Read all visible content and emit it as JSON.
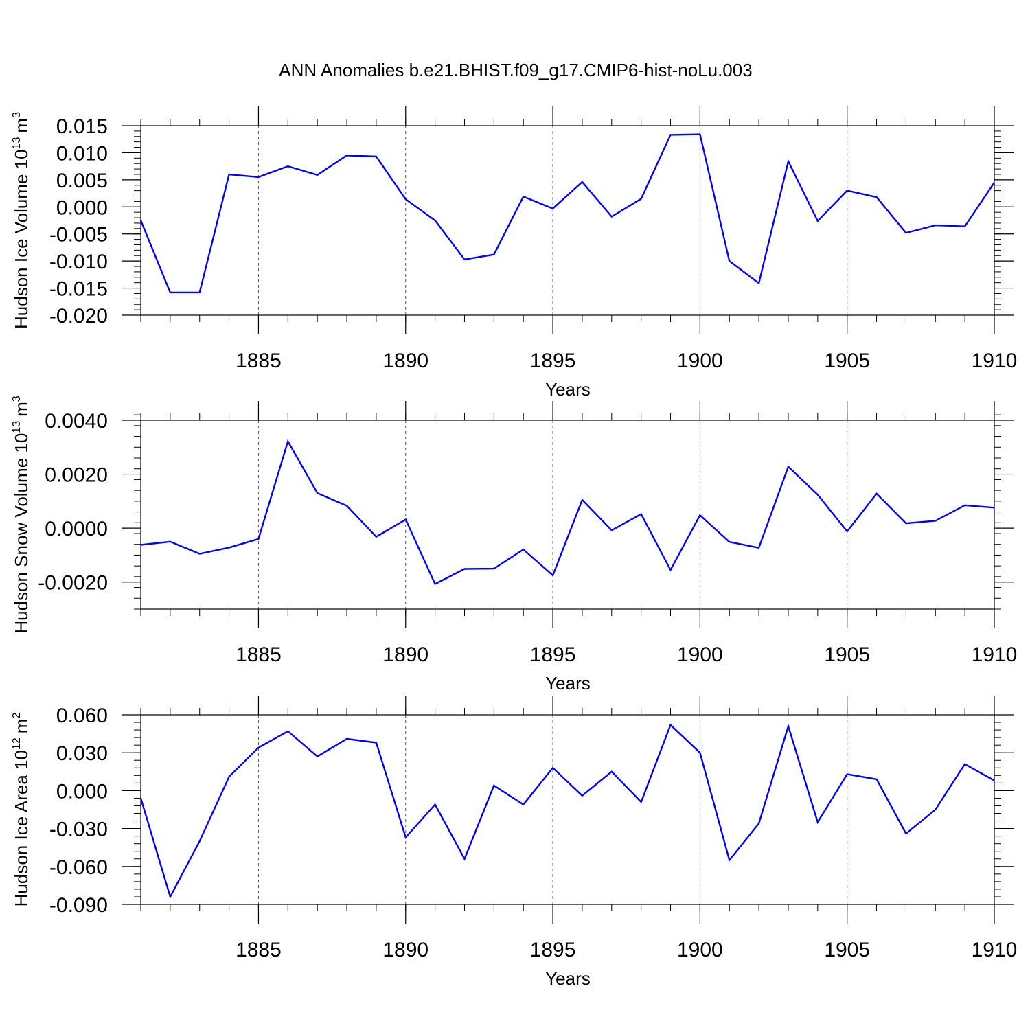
{
  "figure_title": "ANN Anomalies b.e21.BHIST.f09_g17.CMIP6-hist-noLu.003",
  "colors": {
    "series": "#0000ff",
    "axis": "#000000",
    "grid": "#555555"
  },
  "chart_data": [
    {
      "type": "line",
      "title": "ANN Anomalies b.e21.BHIST.f09_g17.CMIP6-hist-noLu.003",
      "ylabel_main": "Hudson Ice Volume 10",
      "ylabel_exp": "13",
      "ylabel_unit": "m",
      "ylabel_unit_exp": "3",
      "xlabel": "Years",
      "xlim": [
        1881,
        1910
      ],
      "ylim": [
        -0.02,
        0.015
      ],
      "yticks": [
        -0.02,
        -0.015,
        -0.01,
        -0.005,
        0.0,
        0.005,
        0.01,
        0.015
      ],
      "ytick_labels": [
        "-0.020",
        "-0.015",
        "-0.010",
        "-0.005",
        "0.000",
        "0.005",
        "0.010",
        "0.015"
      ],
      "yminor_step": 0.001,
      "xticks": [
        1885,
        1890,
        1895,
        1900,
        1905,
        1910
      ],
      "xtick_labels": [
        "1885",
        "1890",
        "1895",
        "1900",
        "1905",
        "1910"
      ],
      "x": [
        1881,
        1882,
        1883,
        1884,
        1885,
        1886,
        1887,
        1888,
        1889,
        1890,
        1891,
        1892,
        1893,
        1894,
        1895,
        1896,
        1897,
        1898,
        1899,
        1900,
        1901,
        1902,
        1903,
        1904,
        1905,
        1906,
        1907,
        1908,
        1909,
        1910
      ],
      "values": [
        -0.0025,
        -0.0158,
        -0.0158,
        0.006,
        0.0055,
        0.0075,
        0.0059,
        0.0095,
        0.0093,
        0.0014,
        -0.0025,
        -0.0097,
        -0.0088,
        0.0019,
        -0.0003,
        0.0046,
        -0.0018,
        0.0015,
        0.0133,
        0.0134,
        -0.01,
        -0.0141,
        0.0084,
        -0.0026,
        0.003,
        0.0018,
        -0.0048,
        -0.0034,
        -0.0036,
        0.0045
      ]
    },
    {
      "type": "line",
      "ylabel_main": "Hudson Snow Volume 10",
      "ylabel_exp": "13",
      "ylabel_unit": "m",
      "ylabel_unit_exp": "3",
      "xlabel": "Years",
      "xlim": [
        1881,
        1910
      ],
      "ylim": [
        -0.003,
        0.004
      ],
      "yticks": [
        -0.002,
        0.0,
        0.002,
        0.004
      ],
      "ytick_labels": [
        "-0.0020",
        "0.0000",
        "0.0020",
        "0.0040"
      ],
      "yminor_step": 0.0004,
      "xticks": [
        1885,
        1890,
        1895,
        1900,
        1905,
        1910
      ],
      "xtick_labels": [
        "1885",
        "1890",
        "1895",
        "1900",
        "1905",
        "1910"
      ],
      "x": [
        1881,
        1882,
        1883,
        1884,
        1885,
        1886,
        1887,
        1888,
        1889,
        1890,
        1891,
        1892,
        1893,
        1894,
        1895,
        1896,
        1897,
        1898,
        1899,
        1900,
        1901,
        1902,
        1903,
        1904,
        1905,
        1906,
        1907,
        1908,
        1909,
        1910
      ],
      "values": [
        -0.00062,
        -0.0005,
        -0.00095,
        -0.00072,
        -0.0004,
        0.00322,
        0.0013,
        0.00083,
        -0.00032,
        0.00032,
        -0.00207,
        -0.00151,
        -0.0015,
        -0.00079,
        -0.00175,
        0.00105,
        -8e-05,
        0.00052,
        -0.00155,
        0.00048,
        -0.00051,
        -0.00073,
        0.00228,
        0.00124,
        -0.00012,
        0.00128,
        0.00018,
        0.00027,
        0.00085,
        0.00076
      ]
    },
    {
      "type": "line",
      "ylabel_main": "Hudson Ice Area 10",
      "ylabel_exp": "12",
      "ylabel_unit": "m",
      "ylabel_unit_exp": "2",
      "xlabel": "Years",
      "xlim": [
        1881,
        1910
      ],
      "ylim": [
        -0.09,
        0.06
      ],
      "yticks": [
        -0.09,
        -0.06,
        -0.03,
        0.0,
        0.03,
        0.06
      ],
      "ytick_labels": [
        "-0.090",
        "-0.060",
        "-0.030",
        "0.000",
        "0.030",
        "0.060"
      ],
      "yminor_step": 0.006,
      "xticks": [
        1885,
        1890,
        1895,
        1900,
        1905,
        1910
      ],
      "xtick_labels": [
        "1885",
        "1890",
        "1895",
        "1900",
        "1905",
        "1910"
      ],
      "x": [
        1881,
        1882,
        1883,
        1884,
        1885,
        1886,
        1887,
        1888,
        1889,
        1890,
        1891,
        1892,
        1893,
        1894,
        1895,
        1896,
        1897,
        1898,
        1899,
        1900,
        1901,
        1902,
        1903,
        1904,
        1905,
        1906,
        1907,
        1908,
        1909,
        1910
      ],
      "values": [
        -0.006,
        -0.084,
        -0.04,
        0.011,
        0.034,
        0.047,
        0.027,
        0.041,
        0.038,
        -0.037,
        -0.011,
        -0.054,
        0.004,
        -0.011,
        0.018,
        -0.004,
        0.015,
        -0.009,
        0.052,
        0.03,
        -0.055,
        -0.026,
        0.051,
        -0.025,
        0.013,
        0.009,
        -0.034,
        -0.015,
        0.021,
        0.008
      ]
    }
  ]
}
